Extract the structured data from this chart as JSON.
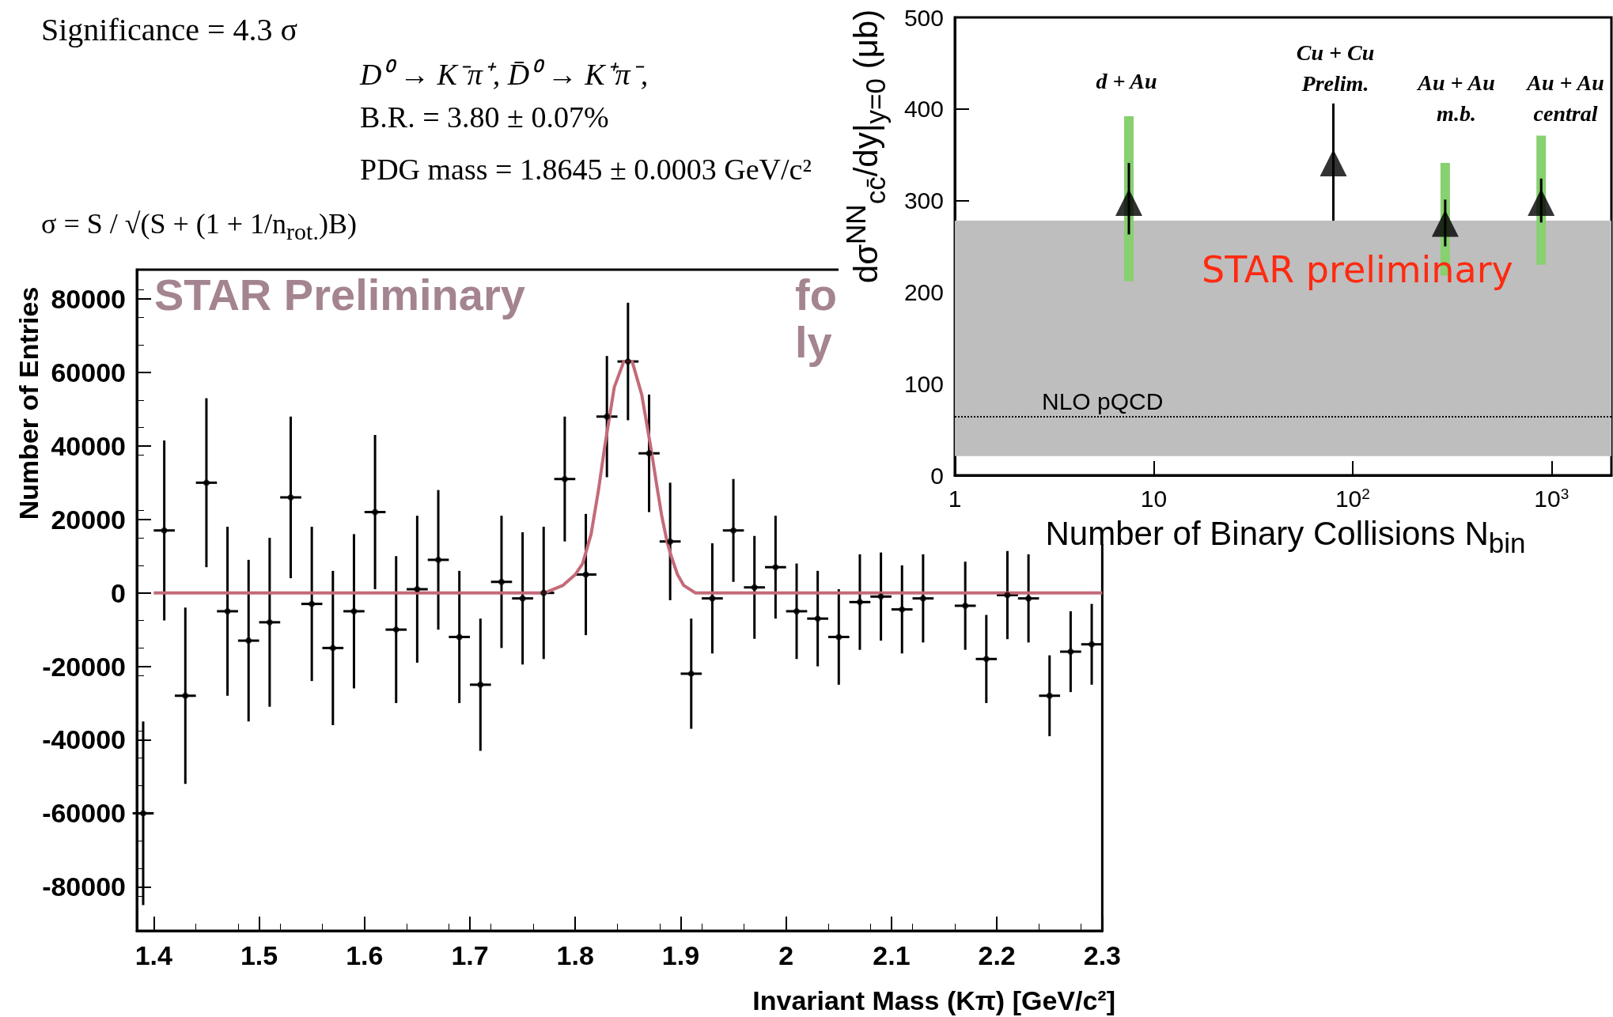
{
  "chart_data": [
    {
      "type": "scatter",
      "xlabel": "Invariant Mass (Kπ) [GeV/c²]",
      "ylabel": "Number of Entries",
      "xlim": [
        1.384,
        2.3
      ],
      "ylim": [
        -92000,
        88000
      ],
      "xticks": [
        1.4,
        1.5,
        1.6,
        1.7,
        1.8,
        1.9,
        2,
        2.1,
        2.2,
        2.3
      ],
      "yticks": [
        -80000,
        -60000,
        -40000,
        -20000,
        0,
        20000,
        40000,
        60000,
        80000
      ],
      "annotations": [
        "Significance = 4.3 σ",
        "σ = S / √(S + (1 + 1/n$_{rot.}$)B)",
        "D⁰ → K⁻π⁺, D̄⁰ → K⁺π⁻,",
        "B.R. = 3.80 ± 0.07%",
        "PDG mass = 1.8645 ± 0.0003 GeV/c²",
        "STAR Preliminary",
        "fo",
        "ly"
      ],
      "series": [
        {
          "color": "#000000",
          "marker": "circle",
          "x": [
            1.39,
            1.41,
            1.43,
            1.45,
            1.47,
            1.49,
            1.51,
            1.53,
            1.55,
            1.57,
            1.59,
            1.61,
            1.63,
            1.65,
            1.67,
            1.69,
            1.71,
            1.73,
            1.75,
            1.77,
            1.79,
            1.81,
            1.83,
            1.85,
            1.87,
            1.89,
            1.91,
            1.93,
            1.95,
            1.97,
            1.99,
            2.01,
            2.03,
            2.05,
            2.07,
            2.09,
            2.11,
            2.13,
            2.15,
            2.17,
            2.19,
            2.21,
            2.23,
            2.25,
            2.27,
            2.29
          ],
          "values": [
            -60000,
            17000,
            -28000,
            30000,
            -5000,
            -13000,
            -8000,
            26000,
            -3000,
            -15000,
            -5000,
            22000,
            -10000,
            1000,
            9000,
            -12000,
            -25000,
            3000,
            -1500,
            0,
            31000,
            5000,
            48000,
            63000,
            38000,
            14000,
            -22000,
            -1500,
            17000,
            1500,
            7000,
            -5000,
            -7000,
            -12000,
            -2500,
            -1000,
            -4500,
            -1500,
            null,
            -3500,
            -18000,
            -600,
            -1500,
            -28000,
            -16000,
            -14000
          ],
          "errors": [
            25000,
            24500,
            24000,
            23000,
            23000,
            22000,
            23000,
            22000,
            21000,
            21000,
            21000,
            21000,
            20000,
            20000,
            19000,
            18000,
            18000,
            18000,
            18000,
            18000,
            17000,
            16500,
            16500,
            16000,
            16000,
            16000,
            15000,
            15000,
            14000,
            14000,
            14000,
            13000,
            13000,
            13000,
            13000,
            12000,
            12000,
            12000,
            null,
            12000,
            12000,
            12000,
            12000,
            11000,
            11000,
            11000
          ],
          "xerrors": [
            0.01,
            0.01,
            0.01,
            0.01,
            0.01,
            0.01,
            0.01,
            0.01,
            0.01,
            0.01,
            0.01,
            0.01,
            0.01,
            0.01,
            0.01,
            0.01,
            0.01,
            0.01,
            0.01,
            0.01,
            0.01,
            0.01,
            0.01,
            0.01,
            0.01,
            0.01,
            0.01,
            0.01,
            0.01,
            0.01,
            0.01,
            0.01,
            0.01,
            0.01,
            0.01,
            0.01,
            0.01,
            0.01,
            null,
            0.01,
            0.01,
            0.01,
            0.01,
            0.01,
            0.01,
            0.01
          ]
        },
        {
          "type": "line",
          "color": "#c46a78",
          "marker": "none",
          "x": [
            1.4,
            1.771,
            1.788,
            1.8,
            1.807,
            1.815,
            1.822,
            1.828,
            1.837,
            1.846,
            1.854,
            1.863,
            1.872,
            1.878,
            1.882,
            1.887,
            1.891,
            1.897,
            1.903,
            1.914,
            2.3
          ],
          "values": [
            0,
            0,
            2000,
            5000,
            8000,
            16000,
            28000,
            40000,
            56000,
            63000,
            63000,
            54000,
            39000,
            28000,
            21000,
            14000,
            10000,
            5000,
            2000,
            0,
            0
          ]
        }
      ]
    },
    {
      "type": "scatter",
      "xlabel": "Number of Binary Collisions N$_{bin}$",
      "ylabel": "dσ$^{NN}$$_{cc̄}$/dy|$_{y=0}$ (μb)",
      "log": "x",
      "xlim": [
        1,
        2000
      ],
      "ylim": [
        0,
        500
      ],
      "xticks": [
        1,
        10,
        {
          "value": 100,
          "label": "10$^{2}$"
        },
        {
          "value": 1000,
          "label": "10$^{3}$"
        }
      ],
      "yticks": [
        0,
        100,
        200,
        300,
        400,
        500
      ],
      "bands": [
        {
          "axis": "y",
          "from": 21,
          "to": 278,
          "color": "#bebebe"
        }
      ],
      "ref_lines": [
        {
          "axis": "y",
          "value": 64,
          "label": "NLO pQCD",
          "line_style": "dotted",
          "color": "#000000"
        }
      ],
      "annotations": [
        "d + Au",
        "Cu + Cu\nPrelim.",
        "Au + Au\nm.b.",
        "Au + Au\ncentral",
        "STAR preliminary"
      ],
      "series": [
        {
          "type": "bar",
          "color": "#88d070",
          "x": [
            7.5,
            292,
            887
          ],
          "base": [
            212,
            218,
            230
          ],
          "values": [
            180,
            123,
            141
          ]
        },
        {
          "color": "#000000",
          "marker": "triangle",
          "x": [
            7.5,
            80,
            292,
            887
          ],
          "values": [
            298,
            341,
            275,
            298
          ],
          "errors": [
            [
              263,
              341
            ],
            [
              278,
              406
            ],
            [
              250,
              301
            ],
            [
              276,
              324
            ]
          ]
        }
      ]
    }
  ]
}
